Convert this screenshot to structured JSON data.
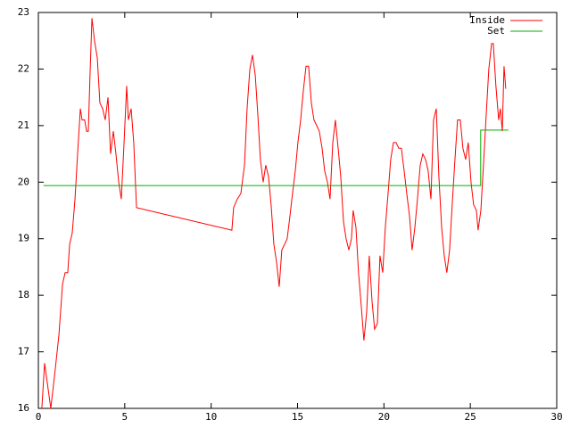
{
  "chart_data": {
    "type": "line",
    "xlim": [
      0,
      30
    ],
    "ylim": [
      16,
      23
    ],
    "xticks": [
      0,
      5,
      10,
      15,
      20,
      25,
      30
    ],
    "yticks": [
      16,
      17,
      18,
      19,
      20,
      21,
      22,
      23
    ],
    "grid": false,
    "legend": "top-right",
    "series": [
      {
        "name": "Inside",
        "color": "#ff0000",
        "x": [
          0.2,
          0.36,
          0.72,
          0.98,
          1.19,
          1.4,
          1.55,
          1.7,
          1.81,
          1.96,
          2.12,
          2.27,
          2.43,
          2.53,
          2.68,
          2.79,
          2.89,
          2.99,
          3.1,
          3.25,
          3.41,
          3.56,
          3.72,
          3.87,
          4.03,
          4.18,
          4.34,
          4.49,
          4.65,
          4.8,
          4.96,
          5.11,
          5.21,
          5.37,
          5.52,
          5.68,
          11.2,
          11.3,
          11.51,
          11.72,
          11.93,
          12.08,
          12.24,
          12.39,
          12.55,
          12.7,
          12.85,
          13.01,
          13.16,
          13.32,
          13.47,
          13.63,
          13.78,
          13.94,
          14.09,
          14.25,
          14.4,
          14.56,
          14.71,
          14.87,
          15.02,
          15.18,
          15.33,
          15.49,
          15.64,
          15.8,
          15.95,
          16.11,
          16.26,
          16.42,
          16.57,
          16.73,
          16.88,
          17.04,
          17.19,
          17.35,
          17.5,
          17.66,
          17.81,
          17.97,
          18.12,
          18.22,
          18.38,
          18.53,
          18.69,
          18.84,
          19.0,
          19.15,
          19.31,
          19.46,
          19.62,
          19.77,
          19.93,
          20.08,
          20.24,
          20.39,
          20.55,
          20.7,
          20.86,
          21.01,
          21.17,
          21.32,
          21.48,
          21.63,
          21.79,
          21.94,
          22.1,
          22.25,
          22.41,
          22.56,
          22.72,
          22.87,
          23.03,
          23.18,
          23.34,
          23.49,
          23.64,
          23.8,
          23.95,
          24.11,
          24.26,
          24.42,
          24.57,
          24.73,
          24.88,
          25.04,
          25.19,
          25.35,
          25.45,
          25.61,
          25.76,
          25.92,
          26.07,
          26.23,
          26.33,
          26.48,
          26.64,
          26.74,
          26.85,
          26.95,
          27.05
        ],
        "values": [
          16.0,
          16.8,
          16.0,
          16.7,
          17.3,
          18.2,
          18.4,
          18.4,
          18.9,
          19.1,
          19.7,
          20.5,
          21.3,
          21.1,
          21.1,
          20.9,
          20.9,
          21.9,
          22.9,
          22.5,
          22.2,
          21.4,
          21.3,
          21.1,
          21.5,
          20.5,
          20.9,
          20.5,
          20.0,
          19.7,
          20.7,
          21.7,
          21.1,
          21.3,
          20.7,
          19.55,
          19.15,
          19.55,
          19.7,
          19.8,
          20.3,
          21.3,
          22.0,
          22.25,
          21.9,
          21.2,
          20.4,
          20.0,
          20.3,
          20.1,
          19.6,
          18.9,
          18.6,
          18.15,
          18.8,
          18.9,
          19.0,
          19.4,
          19.8,
          20.2,
          20.7,
          21.1,
          21.6,
          22.05,
          22.05,
          21.4,
          21.1,
          21.0,
          20.9,
          20.6,
          20.2,
          20.0,
          19.7,
          20.7,
          21.1,
          20.6,
          20.1,
          19.3,
          19.0,
          18.8,
          19.0,
          19.5,
          19.2,
          18.4,
          17.8,
          17.2,
          17.7,
          18.7,
          17.9,
          17.4,
          17.5,
          18.7,
          18.4,
          19.2,
          19.8,
          20.4,
          20.7,
          20.7,
          20.6,
          20.6,
          20.2,
          19.8,
          19.4,
          18.8,
          19.2,
          19.7,
          20.3,
          20.5,
          20.4,
          20.2,
          19.7,
          21.1,
          21.3,
          20.1,
          19.2,
          18.7,
          18.4,
          18.8,
          19.6,
          20.4,
          21.1,
          21.1,
          20.6,
          20.4,
          20.7,
          20.0,
          19.6,
          19.5,
          19.15,
          19.5,
          20.3,
          21.2,
          22.0,
          22.45,
          22.45,
          21.7,
          21.1,
          21.3,
          20.9,
          22.05,
          21.65
        ]
      },
      {
        "name": "Set",
        "color": "#00b000",
        "x": [
          0.3,
          25.6,
          25.6,
          27.2
        ],
        "values": [
          19.94,
          19.94,
          20.92,
          20.92
        ]
      }
    ]
  }
}
